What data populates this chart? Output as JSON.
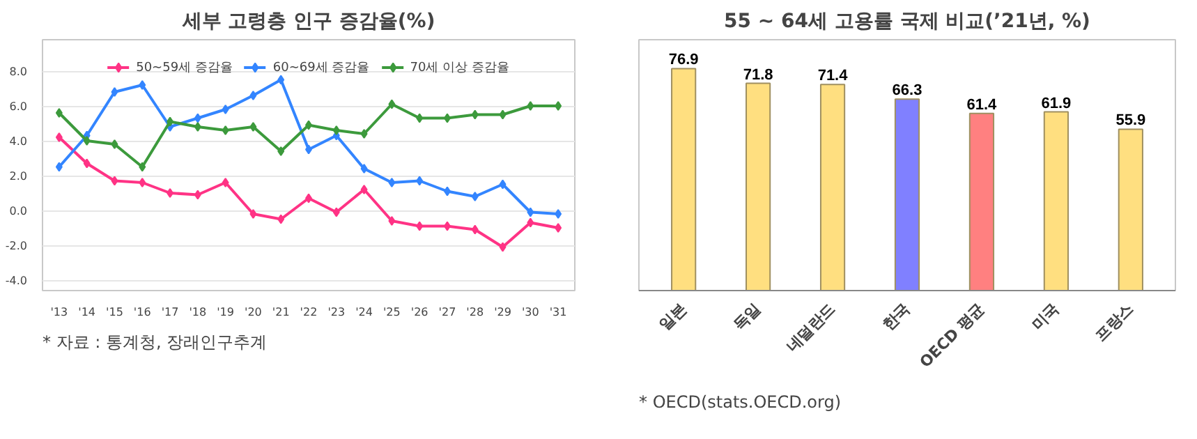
{
  "chart_data": [
    {
      "type": "line",
      "title": "세부 고령층 인구 증감율(%)",
      "categories": [
        "'13",
        "'14",
        "'15",
        "'16",
        "'17",
        "'18",
        "'19",
        "'20",
        "'21",
        "'22",
        "'23",
        "'24",
        "'25",
        "'26",
        "'27",
        "'28",
        "'29",
        "'30",
        "'31"
      ],
      "series": [
        {
          "name": "50~59세 증감율",
          "color": "#ff3385",
          "values": [
            4.2,
            2.7,
            1.7,
            1.6,
            1.0,
            0.9,
            1.6,
            -0.2,
            -0.5,
            0.7,
            -0.1,
            1.2,
            -0.6,
            -0.9,
            -0.9,
            -1.1,
            -2.1,
            -0.7,
            -1.0
          ]
        },
        {
          "name": "60~69세 증감율",
          "color": "#3385ff",
          "values": [
            2.5,
            4.3,
            6.8,
            7.2,
            4.8,
            5.3,
            5.8,
            6.6,
            7.5,
            3.5,
            4.3,
            2.4,
            1.6,
            1.7,
            1.1,
            0.8,
            1.5,
            -0.1,
            -0.2
          ]
        },
        {
          "name": "70세 이상 증감율",
          "color": "#3c9a3c",
          "values": [
            5.6,
            4.0,
            3.8,
            2.5,
            5.1,
            4.8,
            4.6,
            4.8,
            3.4,
            4.9,
            4.6,
            4.4,
            6.1,
            5.3,
            5.3,
            5.5,
            5.5,
            6.0,
            6.0
          ]
        }
      ],
      "ylim": [
        -4.6,
        9.8
      ],
      "yticks": [
        {
          "value": 8,
          "label": "8.0"
        },
        {
          "value": 6,
          "label": "6.0"
        },
        {
          "value": 4,
          "label": "4.0"
        },
        {
          "value": 2,
          "label": "2.0"
        },
        {
          "value": 0,
          "label": "0.0"
        },
        {
          "value": -2,
          "label": "-2.0"
        },
        {
          "value": -4,
          "label": "-4.0"
        }
      ],
      "grid": "y",
      "legend": "top",
      "marker": "diamond",
      "line_style": "solid",
      "annotations": [
        "* 자료 : 통계청, 장래인구추계"
      ]
    },
    {
      "type": "bar",
      "title": "55 ~ 64세 고용률 국제 비교(’21년, %)",
      "categories": [
        "일본",
        "독일",
        "네덜란드",
        "한국",
        "OECD 평균",
        "미국",
        "프랑스"
      ],
      "values": [
        76.9,
        71.8,
        71.4,
        66.3,
        61.4,
        61.9,
        55.9
      ],
      "colors": [
        "#ffdf80",
        "#ffdf80",
        "#ffdf80",
        "#8080ff",
        "#ff8080",
        "#ffdf80",
        "#ffdf80"
      ],
      "data_labels": true,
      "grid": false,
      "annotations": [
        "* OECD(stats.OECD.org)"
      ]
    }
  ]
}
